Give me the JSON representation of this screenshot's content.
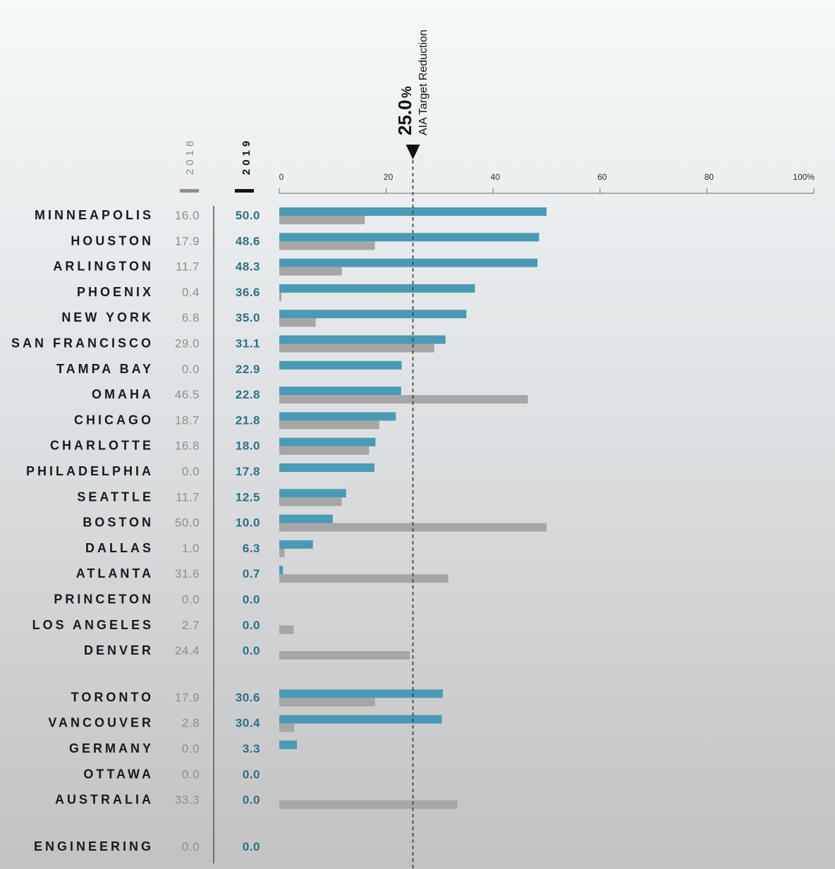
{
  "chart_data": {
    "type": "bar",
    "orientation": "horizontal",
    "x_ticks": [
      "0",
      "20",
      "40",
      "60",
      "80",
      "100%"
    ],
    "xlim": [
      0,
      100
    ],
    "series": [
      {
        "name": "2018",
        "color": "#a6a6a6"
      },
      {
        "name": "2019",
        "color": "#4a9ab5"
      }
    ],
    "target": {
      "value": 25.0,
      "value_text": "25.0",
      "unit": "%",
      "label": "AIA Target Reduction"
    },
    "groups": [
      [
        {
          "category": "MINNEAPOLIS",
          "v2018": 16.0,
          "v2019": 50.0,
          "t2018": "16.0",
          "t2019": "50.0"
        },
        {
          "category": "HOUSTON",
          "v2018": 17.9,
          "v2019": 48.6,
          "t2018": "17.9",
          "t2019": "48.6"
        },
        {
          "category": "ARLINGTON",
          "v2018": 11.7,
          "v2019": 48.3,
          "t2018": "11.7",
          "t2019": "48.3"
        },
        {
          "category": "PHOENIX",
          "v2018": 0.4,
          "v2019": 36.6,
          "t2018": "0.4",
          "t2019": "36.6"
        },
        {
          "category": "NEW YORK",
          "v2018": 6.8,
          "v2019": 35.0,
          "t2018": "6.8",
          "t2019": "35.0"
        },
        {
          "category": "SAN FRANCISCO",
          "v2018": 29.0,
          "v2019": 31.1,
          "t2018": "29.0",
          "t2019": "31.1"
        },
        {
          "category": "TAMPA BAY",
          "v2018": 0.0,
          "v2019": 22.9,
          "t2018": "0.0",
          "t2019": "22.9"
        },
        {
          "category": "OMAHA",
          "v2018": 46.5,
          "v2019": 22.8,
          "t2018": "46.5",
          "t2019": "22.8"
        },
        {
          "category": "CHICAGO",
          "v2018": 18.7,
          "v2019": 21.8,
          "t2018": "18.7",
          "t2019": "21.8"
        },
        {
          "category": "CHARLOTTE",
          "v2018": 16.8,
          "v2019": 18.0,
          "t2018": "16.8",
          "t2019": "18.0"
        },
        {
          "category": "PHILADELPHIA",
          "v2018": 0.0,
          "v2019": 17.8,
          "t2018": "0.0",
          "t2019": "17.8"
        },
        {
          "category": "SEATTLE",
          "v2018": 11.7,
          "v2019": 12.5,
          "t2018": "11.7",
          "t2019": "12.5"
        },
        {
          "category": "BOSTON",
          "v2018": 50.0,
          "v2019": 10.0,
          "t2018": "50.0",
          "t2019": "10.0"
        },
        {
          "category": "DALLAS",
          "v2018": 1.0,
          "v2019": 6.3,
          "t2018": "1.0",
          "t2019": "6.3"
        },
        {
          "category": "ATLANTA",
          "v2018": 31.6,
          "v2019": 0.7,
          "t2018": "31.6",
          "t2019": "0.7"
        },
        {
          "category": "PRINCETON",
          "v2018": 0.0,
          "v2019": 0.0,
          "t2018": "0.0",
          "t2019": "0.0"
        },
        {
          "category": "LOS ANGELES",
          "v2018": 2.7,
          "v2019": 0.0,
          "t2018": "2.7",
          "t2019": "0.0"
        },
        {
          "category": "DENVER",
          "v2018": 24.4,
          "v2019": 0.0,
          "t2018": "24.4",
          "t2019": "0.0"
        }
      ],
      [
        {
          "category": "TORONTO",
          "v2018": 17.9,
          "v2019": 30.6,
          "t2018": "17.9",
          "t2019": "30.6"
        },
        {
          "category": "VANCOUVER",
          "v2018": 2.8,
          "v2019": 30.4,
          "t2018": "2.8",
          "t2019": "30.4"
        },
        {
          "category": "GERMANY",
          "v2018": 0.0,
          "v2019": 3.3,
          "t2018": "0.0",
          "t2019": "3.3"
        },
        {
          "category": "OTTAWA",
          "v2018": 0.0,
          "v2019": 0.0,
          "t2018": "0.0",
          "t2019": "0.0"
        },
        {
          "category": "AUSTRALIA",
          "v2018": 33.3,
          "v2019": 0.0,
          "t2018": "33.3",
          "t2019": "0.0"
        }
      ],
      [
        {
          "category": "ENGINEERING",
          "v2018": 0.0,
          "v2019": 0.0,
          "t2018": "0.0",
          "t2019": "0.0"
        }
      ]
    ]
  }
}
